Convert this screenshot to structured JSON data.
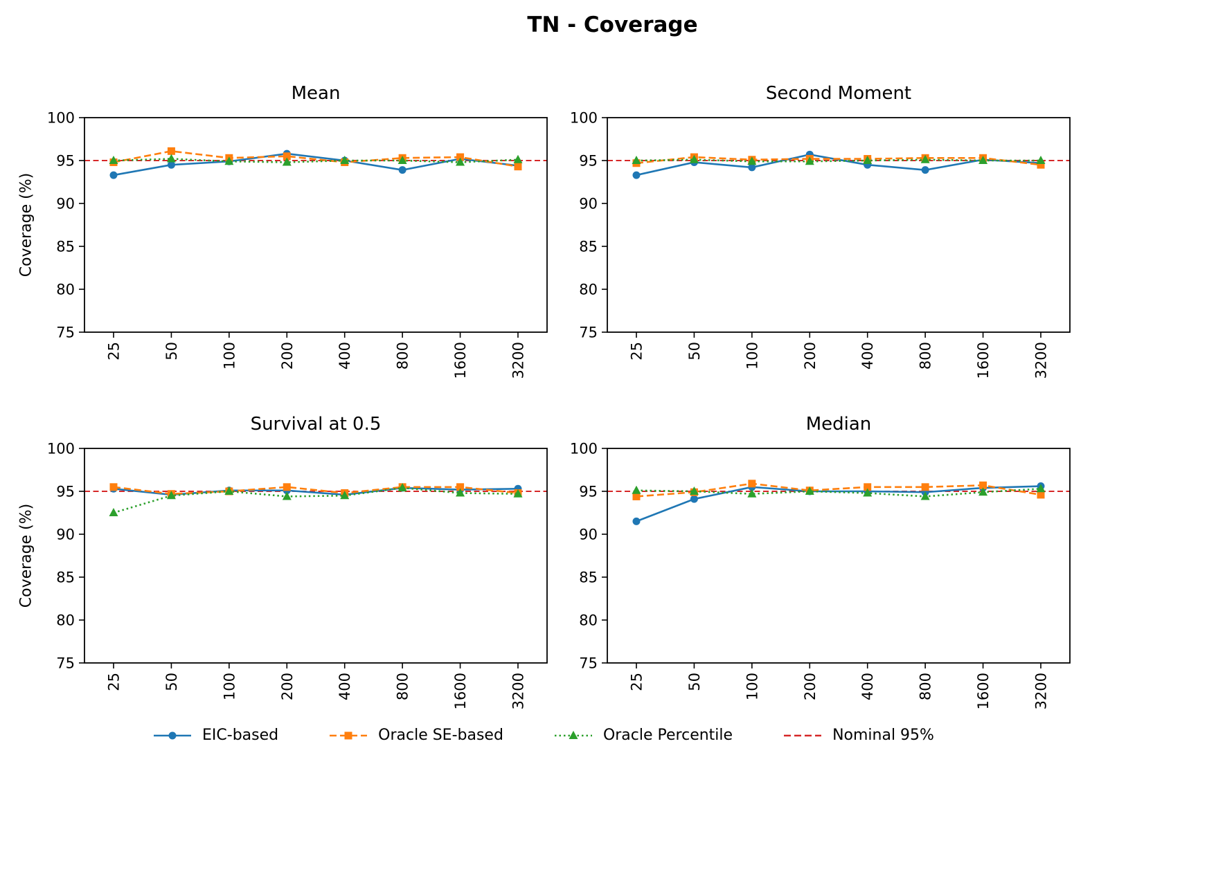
{
  "figure_title": "TN - Coverage",
  "y_axis_label": "Coverage (%)",
  "legend": [
    {
      "label": "EIC-based",
      "color": "#1f77b4",
      "dash": "solid",
      "marker": "circle"
    },
    {
      "label": "Oracle SE-based",
      "color": "#ff7f0e",
      "dash": "dashed",
      "marker": "square"
    },
    {
      "label": "Oracle Percentile",
      "color": "#2ca02c",
      "dash": "dotted",
      "marker": "triangle"
    },
    {
      "label": "Nominal 95%",
      "color": "#d62728",
      "dash": "dashed",
      "marker": "none"
    }
  ],
  "chart_data": [
    {
      "type": "line",
      "title": "Mean",
      "xlabel": "",
      "ylabel": "Coverage (%)",
      "categories": [
        "25",
        "50",
        "100",
        "200",
        "400",
        "800",
        "1600",
        "3200"
      ],
      "ylim": [
        75,
        100
      ],
      "yticks": [
        75,
        80,
        85,
        90,
        95,
        100
      ],
      "grid": false,
      "legend_position": "figure-bottom",
      "nominal_line": 95,
      "series": [
        {
          "name": "EIC-based",
          "values": [
            93.3,
            94.5,
            94.9,
            95.8,
            95.0,
            93.9,
            95.2,
            94.4
          ]
        },
        {
          "name": "Oracle SE-based",
          "values": [
            94.8,
            96.1,
            95.3,
            95.5,
            94.8,
            95.3,
            95.4,
            94.3
          ]
        },
        {
          "name": "Oracle Percentile",
          "values": [
            95.0,
            95.2,
            94.9,
            94.8,
            95.0,
            95.0,
            94.8,
            95.1
          ]
        }
      ]
    },
    {
      "type": "line",
      "title": "Second Moment",
      "xlabel": "",
      "ylabel": "Coverage (%)",
      "categories": [
        "25",
        "50",
        "100",
        "200",
        "400",
        "800",
        "1600",
        "3200"
      ],
      "ylim": [
        75,
        100
      ],
      "yticks": [
        75,
        80,
        85,
        90,
        95,
        100
      ],
      "grid": false,
      "legend_position": "figure-bottom",
      "nominal_line": 95,
      "series": [
        {
          "name": "EIC-based",
          "values": [
            93.3,
            94.8,
            94.2,
            95.7,
            94.5,
            93.9,
            95.1,
            94.7
          ]
        },
        {
          "name": "Oracle SE-based",
          "values": [
            94.7,
            95.4,
            95.1,
            95.2,
            95.2,
            95.3,
            95.3,
            94.5
          ]
        },
        {
          "name": "Oracle Percentile",
          "values": [
            95.0,
            95.1,
            94.9,
            94.9,
            95.0,
            95.1,
            95.0,
            95.0
          ]
        }
      ]
    },
    {
      "type": "line",
      "title": "Survival at 0.5",
      "xlabel": "",
      "ylabel": "Coverage (%)",
      "categories": [
        "25",
        "50",
        "100",
        "200",
        "400",
        "800",
        "1600",
        "3200"
      ],
      "ylim": [
        75,
        100
      ],
      "yticks": [
        75,
        80,
        85,
        90,
        95,
        100
      ],
      "grid": false,
      "legend_position": "figure-bottom",
      "nominal_line": 95,
      "series": [
        {
          "name": "EIC-based",
          "values": [
            95.3,
            94.6,
            95.1,
            95.1,
            94.6,
            95.4,
            95.2,
            95.3
          ]
        },
        {
          "name": "Oracle SE-based",
          "values": [
            95.5,
            94.7,
            95.0,
            95.5,
            94.8,
            95.5,
            95.5,
            94.8
          ]
        },
        {
          "name": "Oracle Percentile",
          "values": [
            92.5,
            94.5,
            95.0,
            94.4,
            94.5,
            95.4,
            94.8,
            94.7
          ]
        }
      ]
    },
    {
      "type": "line",
      "title": "Median",
      "xlabel": "",
      "ylabel": "Coverage (%)",
      "categories": [
        "25",
        "50",
        "100",
        "200",
        "400",
        "800",
        "1600",
        "3200"
      ],
      "ylim": [
        75,
        100
      ],
      "yticks": [
        75,
        80,
        85,
        90,
        95,
        100
      ],
      "grid": false,
      "legend_position": "figure-bottom",
      "nominal_line": 95,
      "series": [
        {
          "name": "EIC-based",
          "values": [
            91.5,
            94.1,
            95.5,
            95.0,
            95.0,
            94.9,
            95.4,
            95.6
          ]
        },
        {
          "name": "Oracle SE-based",
          "values": [
            94.4,
            94.9,
            95.9,
            95.1,
            95.5,
            95.5,
            95.7,
            94.6
          ]
        },
        {
          "name": "Oracle Percentile",
          "values": [
            95.1,
            95.0,
            94.7,
            95.0,
            94.8,
            94.4,
            94.9,
            95.3
          ]
        }
      ]
    }
  ]
}
